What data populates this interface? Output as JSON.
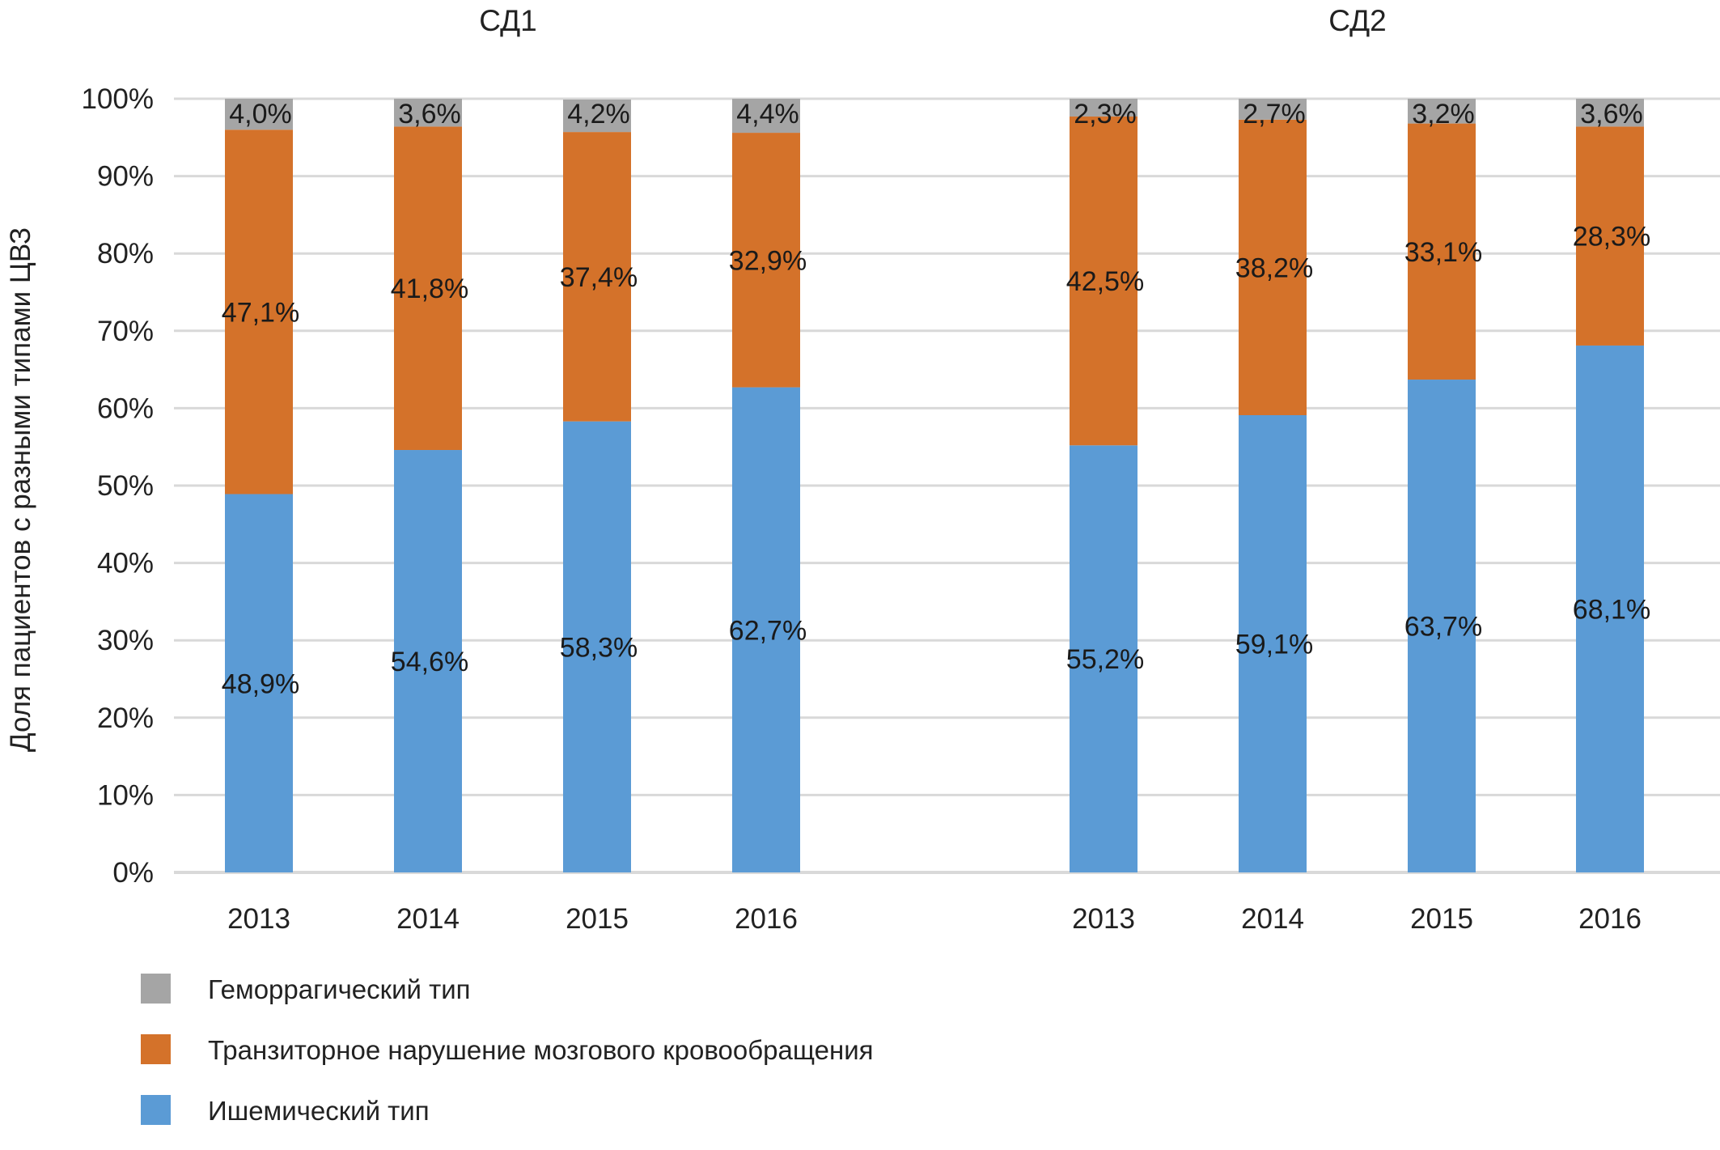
{
  "chart_data": {
    "type": "bar",
    "stacked": true,
    "ylabel": "Доля пациентов с разными типами ЦВЗ",
    "ylim": [
      0,
      100
    ],
    "yticks": [
      "0%",
      "10%",
      "20%",
      "30%",
      "40%",
      "50%",
      "60%",
      "70%",
      "80%",
      "90%",
      "100%"
    ],
    "grid": true,
    "legend_position": "bottom-left",
    "groups": [
      {
        "name": "СД1",
        "categories": [
          "2013",
          "2014",
          "2015",
          "2016"
        ],
        "series": [
          {
            "name": "Ишемический тип",
            "values": [
              48.9,
              54.6,
              58.3,
              62.7
            ],
            "labels": [
              "48,9%",
              "54,6%",
              "58,3%",
              "62,7%"
            ]
          },
          {
            "name": "Транзиторное нарушение мозгового кровообращения",
            "values": [
              47.1,
              41.8,
              37.4,
              32.9
            ],
            "labels": [
              "47,1%",
              "41,8%",
              "37,4%",
              "32,9%"
            ]
          },
          {
            "name": "Геморрагический тип",
            "values": [
              4.0,
              3.6,
              4.2,
              4.4
            ],
            "labels": [
              "4,0%",
              "3,6%",
              "4,2%",
              "4,4%"
            ]
          }
        ]
      },
      {
        "name": "СД2",
        "categories": [
          "2013",
          "2014",
          "2015",
          "2016"
        ],
        "series": [
          {
            "name": "Ишемический тип",
            "values": [
              55.2,
              59.1,
              63.7,
              68.1
            ],
            "labels": [
              "55,2%",
              "59,1%",
              "63,7%",
              "68,1%"
            ]
          },
          {
            "name": "Транзиторное нарушение мозгового кровообращения",
            "values": [
              42.5,
              38.2,
              33.1,
              28.3
            ],
            "labels": [
              "42,5%",
              "38,2%",
              "33,1%",
              "28,3%"
            ]
          },
          {
            "name": "Геморрагический тип",
            "values": [
              2.3,
              2.7,
              3.2,
              3.6
            ],
            "labels": [
              "2,3%",
              "2,7%",
              "3,2%",
              "3,6%"
            ]
          }
        ]
      }
    ],
    "legend": [
      "Геморрагический тип",
      "Транзиторное нарушение мозгового кровообращения",
      "Ишемический тип"
    ],
    "colors": {
      "Ишемический тип": "#5b9bd5",
      "Транзиторное нарушение мозгового кровообращения": "#d4722a",
      "Геморрагический тип": "#a5a5a5"
    }
  }
}
